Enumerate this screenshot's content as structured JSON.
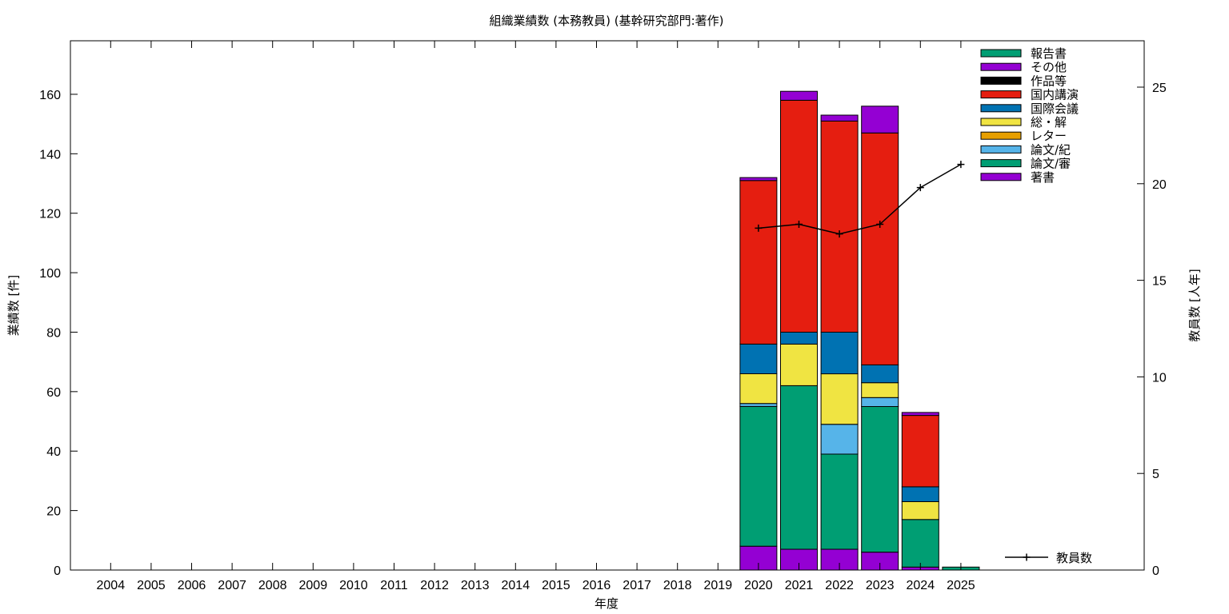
{
  "chart_data": {
    "type": "bar",
    "stacked": true,
    "title": "組織業績数 (本務教員) (基幹研究部門:著作)",
    "xlabel": "年度",
    "ylabel": "業績数 [件]",
    "y2label": "教員数 [人年]",
    "ylim": [
      0,
      178
    ],
    "y2lim": [
      0,
      27.4
    ],
    "yticks": [
      0,
      20,
      40,
      60,
      80,
      100,
      120,
      140,
      160
    ],
    "y2ticks": [
      0,
      5,
      10,
      15,
      20,
      25
    ],
    "categories": [
      "2004",
      "2005",
      "2006",
      "2007",
      "2008",
      "2009",
      "2010",
      "2011",
      "2012",
      "2013",
      "2014",
      "2015",
      "2016",
      "2017",
      "2018",
      "2019",
      "2020",
      "2021",
      "2022",
      "2023",
      "2024",
      "2025"
    ],
    "series": [
      {
        "name": "著書",
        "color": "#9400d3",
        "values": [
          0,
          0,
          0,
          0,
          0,
          0,
          0,
          0,
          0,
          0,
          0,
          0,
          0,
          0,
          0,
          0,
          8,
          7,
          7,
          6,
          1,
          0
        ]
      },
      {
        "name": "論文/審",
        "color": "#009e73",
        "values": [
          0,
          0,
          0,
          0,
          0,
          0,
          0,
          0,
          0,
          0,
          0,
          0,
          0,
          0,
          0,
          0,
          47,
          55,
          32,
          49,
          16,
          1
        ]
      },
      {
        "name": "論文/紀",
        "color": "#56b4e9",
        "values": [
          0,
          0,
          0,
          0,
          0,
          0,
          0,
          0,
          0,
          0,
          0,
          0,
          0,
          0,
          0,
          0,
          1,
          0,
          10,
          3,
          0,
          0
        ]
      },
      {
        "name": "レター",
        "color": "#e69f00",
        "values": [
          0,
          0,
          0,
          0,
          0,
          0,
          0,
          0,
          0,
          0,
          0,
          0,
          0,
          0,
          0,
          0,
          0,
          0,
          0,
          0,
          0,
          0
        ]
      },
      {
        "name": "総・解",
        "color": "#f0e442",
        "values": [
          0,
          0,
          0,
          0,
          0,
          0,
          0,
          0,
          0,
          0,
          0,
          0,
          0,
          0,
          0,
          0,
          10,
          14,
          17,
          5,
          6,
          0
        ]
      },
      {
        "name": "国際会議",
        "color": "#0072b2",
        "values": [
          0,
          0,
          0,
          0,
          0,
          0,
          0,
          0,
          0,
          0,
          0,
          0,
          0,
          0,
          0,
          0,
          10,
          4,
          14,
          6,
          5,
          0
        ]
      },
      {
        "name": "国内講演",
        "color": "#e51e10",
        "values": [
          0,
          0,
          0,
          0,
          0,
          0,
          0,
          0,
          0,
          0,
          0,
          0,
          0,
          0,
          0,
          0,
          55,
          78,
          71,
          78,
          24,
          0
        ]
      },
      {
        "name": "作品等",
        "color": "#000000",
        "values": [
          0,
          0,
          0,
          0,
          0,
          0,
          0,
          0,
          0,
          0,
          0,
          0,
          0,
          0,
          0,
          0,
          0,
          0,
          0,
          0,
          0,
          0
        ]
      },
      {
        "name": "その他",
        "color": "#9400d3",
        "values": [
          0,
          0,
          0,
          0,
          0,
          0,
          0,
          0,
          0,
          0,
          0,
          0,
          0,
          0,
          0,
          0,
          1,
          3,
          2,
          9,
          1,
          0
        ]
      },
      {
        "name": "報告書",
        "color": "#009e73",
        "values": [
          0,
          0,
          0,
          0,
          0,
          0,
          0,
          0,
          0,
          0,
          0,
          0,
          0,
          0,
          0,
          0,
          0,
          0,
          0,
          0,
          0,
          0
        ]
      }
    ],
    "line": {
      "name": "教員数",
      "axis": "y2",
      "color": "#000000",
      "x": [
        "2020",
        "2021",
        "2022",
        "2023",
        "2024",
        "2025"
      ],
      "values": [
        17.7,
        17.9,
        17.4,
        17.9,
        19.8,
        21.0
      ]
    },
    "legend_position": "top-right",
    "line_legend_position": "bottom-right",
    "grid": false
  }
}
